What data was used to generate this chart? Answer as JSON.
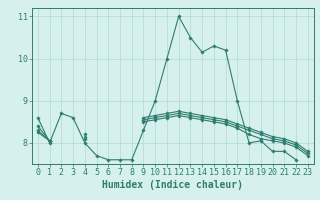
{
  "title": "",
  "xlabel": "Humidex (Indice chaleur)",
  "ylabel": "",
  "x": [
    0,
    1,
    2,
    3,
    4,
    5,
    6,
    7,
    8,
    9,
    10,
    11,
    12,
    13,
    14,
    15,
    16,
    17,
    18,
    19,
    20,
    21,
    22,
    23
  ],
  "line1": [
    8.6,
    8.0,
    8.7,
    8.6,
    8.0,
    7.7,
    7.6,
    7.6,
    7.6,
    8.3,
    9.0,
    10.0,
    11.0,
    10.5,
    10.15,
    10.3,
    10.2,
    9.0,
    8.0,
    8.05,
    7.8,
    7.8,
    7.6,
    null
  ],
  "line2": [
    8.25,
    8.05,
    null,
    null,
    8.1,
    null,
    null,
    null,
    null,
    8.5,
    8.55,
    8.6,
    8.65,
    8.6,
    8.55,
    8.5,
    8.45,
    8.35,
    8.2,
    8.1,
    8.05,
    8.0,
    7.9,
    7.7
  ],
  "line3": [
    8.3,
    8.05,
    null,
    null,
    8.15,
    null,
    null,
    null,
    null,
    8.55,
    8.6,
    8.65,
    8.7,
    8.65,
    8.6,
    8.55,
    8.5,
    8.4,
    8.3,
    8.2,
    8.1,
    8.05,
    7.95,
    7.75
  ],
  "line4": [
    8.4,
    8.05,
    null,
    null,
    8.2,
    null,
    null,
    null,
    null,
    8.6,
    8.65,
    8.7,
    8.75,
    8.7,
    8.65,
    8.6,
    8.55,
    8.45,
    8.35,
    8.25,
    8.15,
    8.1,
    8.0,
    7.8
  ],
  "ylim": [
    7.5,
    11.2
  ],
  "xlim": [
    -0.5,
    23.5
  ],
  "yticks": [
    8,
    9,
    10,
    11
  ],
  "xticks": [
    0,
    1,
    2,
    3,
    4,
    5,
    6,
    7,
    8,
    9,
    10,
    11,
    12,
    13,
    14,
    15,
    16,
    17,
    18,
    19,
    20,
    21,
    22,
    23
  ],
  "line_color": "#2e7d6e",
  "bg_color": "#d6f0ee",
  "grid_color": "#b0d8d4",
  "marker": "D",
  "markersize": 1.8,
  "linewidth": 0.8,
  "xlabel_fontsize": 7,
  "tick_fontsize": 6
}
